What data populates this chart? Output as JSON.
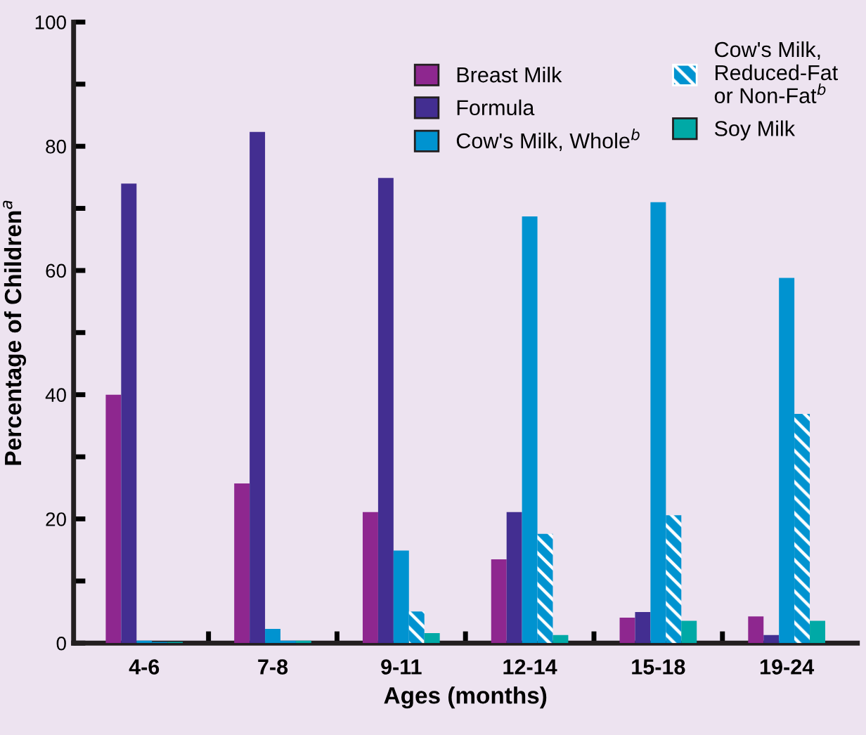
{
  "chart_data": {
    "type": "bar",
    "xlabel": "Ages (months)",
    "ylabel": "Percentage of Children$^{a}$",
    "categories": [
      "4-6",
      "7-8",
      "9-11",
      "12-14",
      "15-18",
      "19-24"
    ],
    "series": [
      {
        "name": "Breast Milk",
        "color": "#8e278f",
        "values": [
          40.0,
          25.7,
          21.1,
          13.5,
          4.1,
          4.3
        ]
      },
      {
        "name": "Formula",
        "color": "#432e91",
        "values": [
          74.0,
          82.3,
          74.9,
          21.1,
          5.0,
          1.3
        ]
      },
      {
        "name": "Cow's Milk, Whole$^{b}$",
        "color": "#0093d0",
        "values": [
          0.4,
          2.3,
          14.9,
          68.7,
          71.0,
          58.8
        ]
      },
      {
        "name": "Cow's Milk,\nReduced-Fat\nor Non-Fat$^{b}$",
        "color": "#0093d0",
        "values": [
          0.2,
          0.4,
          5.1,
          17.6,
          20.6,
          36.9
        ]
      },
      {
        "name": "Soy Milk",
        "color": "#00a9a6",
        "values": [
          0.2,
          0.4,
          1.6,
          1.3,
          3.6,
          3.6
        ]
      }
    ],
    "ylim": [
      0,
      100
    ],
    "yticks": [
      0,
      {
        "value": 10,
        "label": null
      },
      20,
      {
        "value": 30,
        "label": null
      },
      40,
      {
        "value": 50,
        "label": null
      },
      60,
      {
        "value": 70,
        "label": null
      },
      80,
      {
        "value": 90,
        "label": null
      },
      100
    ],
    "grid": false,
    "legend": "top right"
  }
}
